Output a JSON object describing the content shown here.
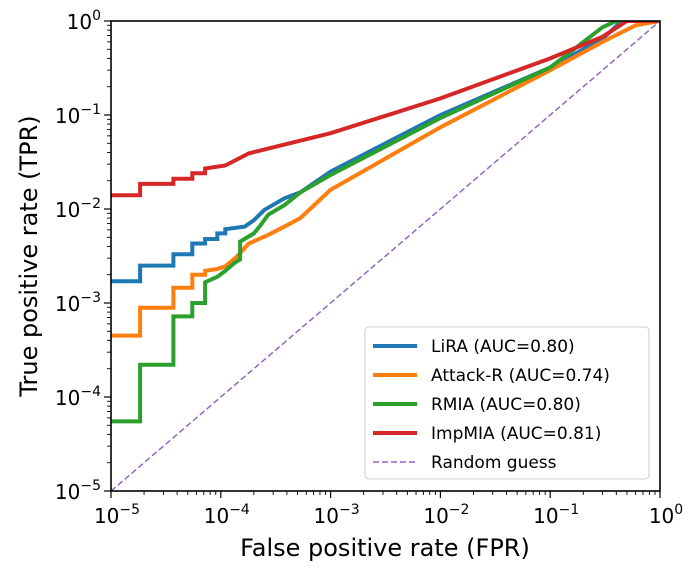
{
  "chart_data": {
    "type": "line",
    "xlabel": "False positive rate (FPR)",
    "ylabel": "True positive rate (TPR)",
    "xscale": "log",
    "yscale": "log",
    "xlim": [
      1e-05,
      1
    ],
    "ylim": [
      1e-05,
      1
    ],
    "x_ticks": [
      {
        "base": "10",
        "exp": "−5",
        "v": 1e-05
      },
      {
        "base": "10",
        "exp": "−4",
        "v": 0.0001
      },
      {
        "base": "10",
        "exp": "−3",
        "v": 0.001
      },
      {
        "base": "10",
        "exp": "−2",
        "v": 0.01
      },
      {
        "base": "10",
        "exp": "−1",
        "v": 0.1
      },
      {
        "base": "10",
        "exp": "0",
        "v": 1
      }
    ],
    "y_ticks": [
      {
        "base": "10",
        "exp": "−5",
        "v": 1e-05
      },
      {
        "base": "10",
        "exp": "−4",
        "v": 0.0001
      },
      {
        "base": "10",
        "exp": "−3",
        "v": 0.001
      },
      {
        "base": "10",
        "exp": "−2",
        "v": 0.01
      },
      {
        "base": "10",
        "exp": "−1",
        "v": 0.1
      },
      {
        "base": "10",
        "exp": "0",
        "v": 1
      }
    ],
    "grid": false,
    "legend_position": "lower-right",
    "series": [
      {
        "name": "LiRA (AUC=0.80)",
        "color": "#1f77b4",
        "style": "solid",
        "points": [
          [
            1e-05,
            0.0017
          ],
          [
            1.84e-05,
            0.0017
          ],
          [
            1.84e-05,
            0.0025
          ],
          [
            3.7e-05,
            0.0025
          ],
          [
            3.7e-05,
            0.0033
          ],
          [
            5.5e-05,
            0.0033
          ],
          [
            5.5e-05,
            0.0043
          ],
          [
            7.2e-05,
            0.0043
          ],
          [
            7.2e-05,
            0.0048
          ],
          [
            9.3e-05,
            0.0048
          ],
          [
            9.3e-05,
            0.0055
          ],
          [
            0.00011,
            0.0055
          ],
          [
            0.00011,
            0.0061
          ],
          [
            0.000135,
            0.0063
          ],
          [
            0.000165,
            0.0065
          ],
          [
            0.0002,
            0.0076
          ],
          [
            0.00025,
            0.0098
          ],
          [
            0.00038,
            0.013
          ],
          [
            0.00053,
            0.015
          ],
          [
            0.001,
            0.025
          ],
          [
            0.01,
            0.1
          ],
          [
            0.1,
            0.32
          ],
          [
            0.3,
            0.65
          ],
          [
            0.45,
            1
          ],
          [
            1,
            1
          ]
        ]
      },
      {
        "name": "Attack-R (AUC=0.74)",
        "color": "#ff7f0e",
        "style": "solid",
        "points": [
          [
            1e-05,
            0.00045
          ],
          [
            1.84e-05,
            0.00045
          ],
          [
            1.84e-05,
            0.00089
          ],
          [
            3.7e-05,
            0.00089
          ],
          [
            3.7e-05,
            0.00145
          ],
          [
            5.5e-05,
            0.00145
          ],
          [
            5.5e-05,
            0.002
          ],
          [
            7.2e-05,
            0.002
          ],
          [
            7.2e-05,
            0.0022
          ],
          [
            9.3e-05,
            0.0023
          ],
          [
            0.00011,
            0.00245
          ],
          [
            0.000135,
            0.003
          ],
          [
            0.00015,
            0.0034
          ],
          [
            0.00018,
            0.0043
          ],
          [
            0.00027,
            0.0053
          ],
          [
            0.0004,
            0.0067
          ],
          [
            0.00053,
            0.008
          ],
          [
            0.001,
            0.016
          ],
          [
            0.01,
            0.074
          ],
          [
            0.1,
            0.3
          ],
          [
            0.3,
            0.6
          ],
          [
            0.6,
            0.9
          ],
          [
            1,
            1
          ]
        ]
      },
      {
        "name": "RMIA (AUC=0.80)",
        "color": "#2ca02c",
        "style": "solid",
        "points": [
          [
            1e-05,
            5.5e-05
          ],
          [
            1.84e-05,
            5.5e-05
          ],
          [
            1.84e-05,
            0.00022
          ],
          [
            3.7e-05,
            0.00022
          ],
          [
            3.7e-05,
            0.00072
          ],
          [
            5.5e-05,
            0.00072
          ],
          [
            5.5e-05,
            0.001
          ],
          [
            7.2e-05,
            0.001
          ],
          [
            7.2e-05,
            0.00166
          ],
          [
            9.3e-05,
            0.0019
          ],
          [
            0.00011,
            0.0022
          ],
          [
            0.000135,
            0.0027
          ],
          [
            0.00015,
            0.0029
          ],
          [
            0.00015,
            0.0045
          ],
          [
            0.0002,
            0.0055
          ],
          [
            0.00023,
            0.0067
          ],
          [
            0.00027,
            0.0087
          ],
          [
            0.00038,
            0.011
          ],
          [
            0.00053,
            0.015
          ],
          [
            0.001,
            0.023
          ],
          [
            0.01,
            0.093
          ],
          [
            0.1,
            0.32
          ],
          [
            0.3,
            0.86
          ],
          [
            0.4,
            1
          ],
          [
            1,
            1
          ]
        ]
      },
      {
        "name": "ImpMIA (AUC=0.81)",
        "color": "#d62728",
        "style": "solid",
        "points": [
          [
            1e-05,
            0.014
          ],
          [
            1.84e-05,
            0.014
          ],
          [
            1.84e-05,
            0.0185
          ],
          [
            3.7e-05,
            0.0185
          ],
          [
            3.7e-05,
            0.021
          ],
          [
            5.5e-05,
            0.021
          ],
          [
            5.5e-05,
            0.024
          ],
          [
            7.2e-05,
            0.024
          ],
          [
            7.2e-05,
            0.027
          ],
          [
            0.00011,
            0.029
          ],
          [
            0.00018,
            0.039
          ],
          [
            0.001,
            0.064
          ],
          [
            0.01,
            0.15
          ],
          [
            0.1,
            0.4
          ],
          [
            0.3,
            0.68
          ],
          [
            0.5,
            1
          ],
          [
            1,
            1
          ]
        ]
      },
      {
        "name": "Random guess",
        "color": "#9467bd",
        "style": "dashed",
        "points": [
          [
            1e-05,
            1e-05
          ],
          [
            1,
            1
          ]
        ]
      }
    ]
  }
}
